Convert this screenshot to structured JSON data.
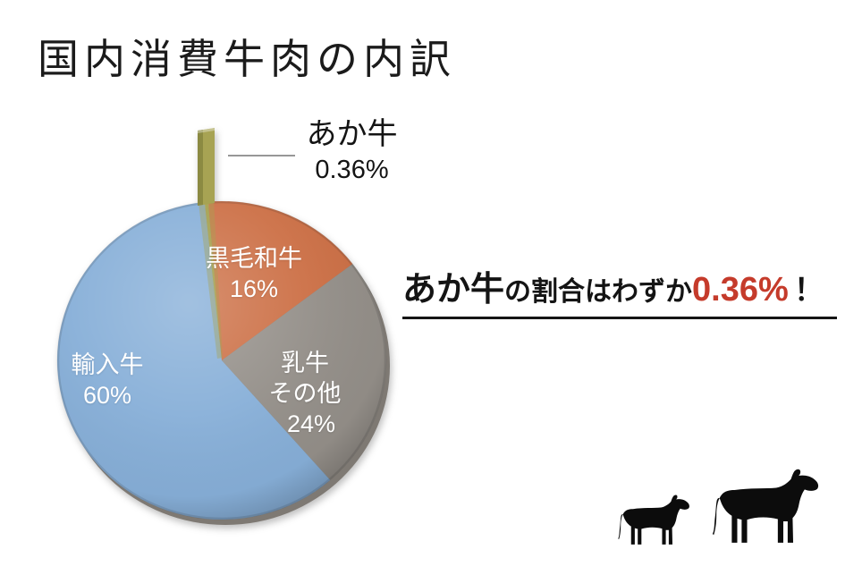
{
  "chart_data": {
    "type": "pie",
    "title": "国内消費牛肉の内訳",
    "legend_position": "none",
    "labels_on_slices": true,
    "start_angle_deg": -6,
    "direction": "clockwise",
    "style": "3d-exploded",
    "slices": [
      {
        "id": "akaushi",
        "label": "あか牛",
        "value": 0.36,
        "display": "0.36%",
        "color": "#a7a353",
        "color_dark": "#8b8a42",
        "exploded": true
      },
      {
        "id": "kuroge-wagyu",
        "label": "黒毛和牛",
        "value": 16,
        "display": "16%",
        "color": "#cc6f45"
      },
      {
        "id": "dairy-others",
        "label": "乳牛その他",
        "label_lines": [
          "乳牛",
          "その他"
        ],
        "value": 24,
        "display": "24%",
        "color": "#948f89"
      },
      {
        "id": "imported",
        "label": "輸入牛",
        "value": 60,
        "display": "60%",
        "color": "#87afd8"
      }
    ],
    "callout": {
      "label": "あか牛",
      "value": "0.36%"
    },
    "annotation": {
      "prefix": "あか牛",
      "middle": "の割合はわずか",
      "value": "0.36%",
      "suffix": "！",
      "value_color": "#c53b2b"
    }
  },
  "icons": {
    "calf": "calf-silhouette",
    "cow": "cow-silhouette",
    "color": "#0c0c0c"
  }
}
